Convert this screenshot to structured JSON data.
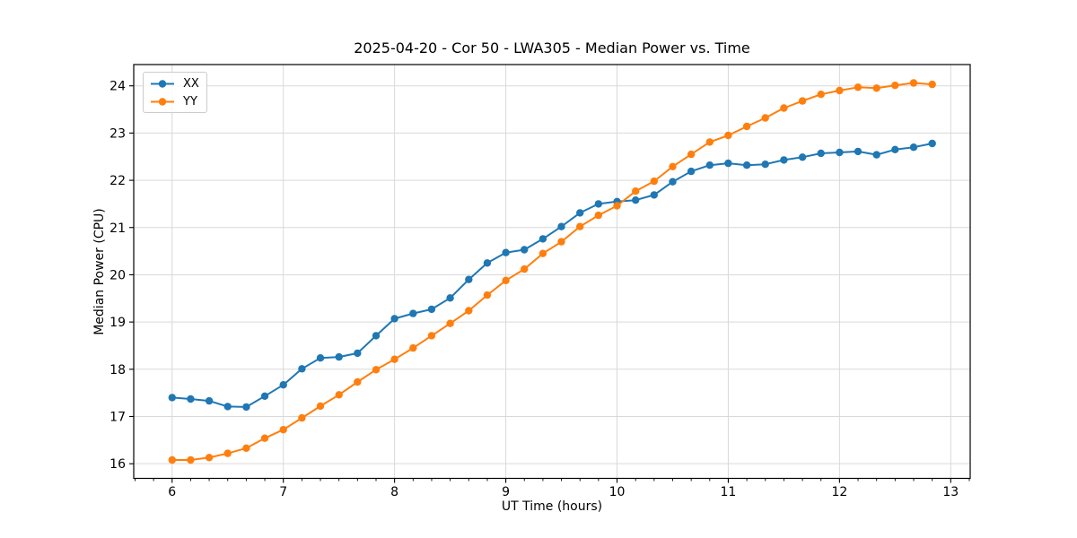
{
  "chart_data": {
    "type": "line",
    "title": "2025-04-20 - Cor 50 - LWA305 - Median Power vs. Time",
    "xlabel": "UT Time (hours)",
    "ylabel": "Median Power (CPU)",
    "x": [
      6.0,
      6.1667,
      6.3333,
      6.5,
      6.6667,
      6.8333,
      7.0,
      7.1667,
      7.3333,
      7.5,
      7.6667,
      7.8333,
      8.0,
      8.1667,
      8.3333,
      8.5,
      8.6667,
      8.8333,
      9.0,
      9.1667,
      9.3333,
      9.5,
      9.6667,
      9.8333,
      10.0,
      10.1667,
      10.3333,
      10.5,
      10.6667,
      10.8333,
      11.0,
      11.1667,
      11.3333,
      11.5,
      11.6667,
      11.8333,
      12.0,
      12.1667,
      12.3333,
      12.5,
      12.6667,
      12.8333
    ],
    "series": [
      {
        "name": "XX",
        "color": "#1f77b4",
        "marker": "circle",
        "values": [
          17.4,
          17.37,
          17.33,
          17.21,
          17.2,
          17.43,
          17.67,
          18.01,
          18.24,
          18.26,
          18.34,
          18.71,
          19.07,
          19.18,
          19.27,
          19.51,
          19.9,
          20.25,
          20.47,
          20.53,
          20.76,
          21.02,
          21.31,
          21.5,
          21.55,
          21.58,
          21.69,
          21.97,
          22.19,
          22.32,
          22.36,
          22.32,
          22.34,
          22.43,
          22.49,
          22.57,
          22.59,
          22.61,
          22.54,
          22.65,
          22.7,
          22.78
        ]
      },
      {
        "name": "YY",
        "color": "#ff7f0e",
        "marker": "circle",
        "values": [
          16.08,
          16.08,
          16.13,
          16.22,
          16.33,
          16.54,
          16.72,
          16.97,
          17.22,
          17.46,
          17.73,
          17.99,
          18.21,
          18.45,
          18.71,
          18.97,
          19.24,
          19.57,
          19.88,
          20.12,
          20.45,
          20.7,
          21.02,
          21.26,
          21.46,
          21.77,
          21.98,
          22.29,
          22.55,
          22.81,
          22.95,
          23.14,
          23.32,
          23.53,
          23.68,
          23.82,
          23.9,
          23.97,
          23.95,
          24.01,
          24.06,
          24.03
        ]
      }
    ],
    "xlim": [
      5.655,
      13.175
    ],
    "ylim": [
      15.69,
      24.45
    ],
    "xticks": [
      6,
      7,
      8,
      9,
      10,
      11,
      12,
      13
    ],
    "yticks": [
      16,
      17,
      18,
      19,
      20,
      21,
      22,
      23,
      24
    ],
    "x_minor_tick_interval": 0.16667,
    "grid": true,
    "grid_color": "#d9d9d9",
    "axis_color": "#000000",
    "background_color": "#ffffff",
    "legend": {
      "location": "upper left",
      "entries": [
        "XX",
        "YY"
      ]
    }
  }
}
